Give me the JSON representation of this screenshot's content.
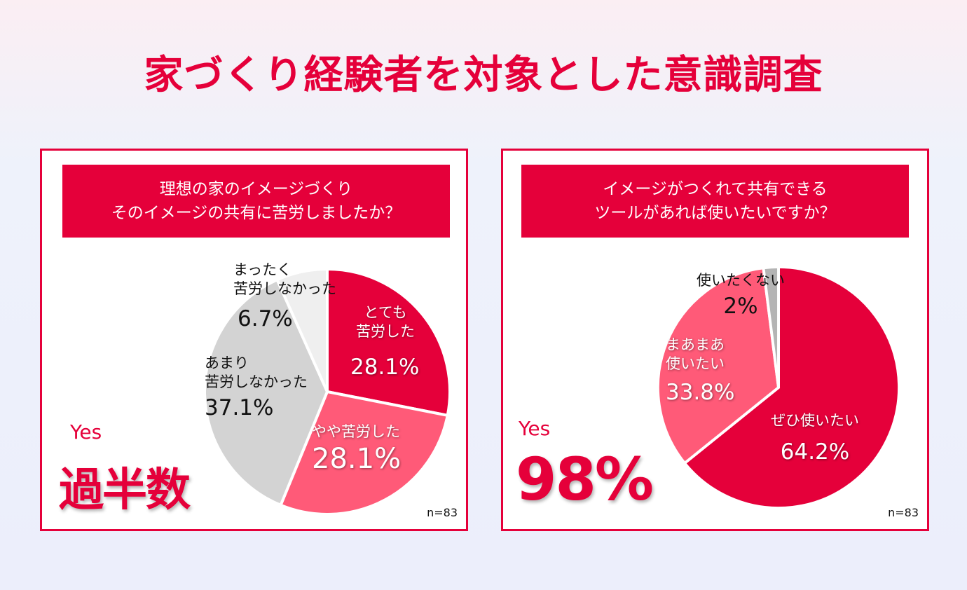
{
  "title": "家づくり経験者を対象とした意識調査",
  "chart_data": [
    {
      "type": "pie",
      "title_lines": [
        "理想の家のイメージづくり",
        "そのイメージの共有に苦労しましたか？"
      ],
      "slices": [
        {
          "label": "とても苦労した",
          "label_lines": [
            "とても",
            "苦労した"
          ],
          "value": 28.1,
          "pct_text": "28.1%",
          "color": "#e5003a"
        },
        {
          "label": "やや苦労した",
          "label_lines": [
            "やや苦労した"
          ],
          "value": 28.1,
          "pct_text": "28.1%",
          "color": "#ff5a78"
        },
        {
          "label": "あまり苦労しなかった",
          "label_lines": [
            "あまり",
            "苦労しなかった"
          ],
          "value": 37.1,
          "pct_text": "37.1%",
          "color": "#d3d3d3"
        },
        {
          "label": "まったく苦労しなかった",
          "label_lines": [
            "まったく",
            "苦労しなかった"
          ],
          "value": 6.7,
          "pct_text": "6.7%",
          "color": "#efefef"
        }
      ],
      "n": "n=83",
      "yes_label": "Yes",
      "highlight": "過半数"
    },
    {
      "type": "pie",
      "title_lines": [
        "イメージがつくれて共有できる",
        "ツールがあれば使いたいですか？"
      ],
      "slices": [
        {
          "label": "ぜひ使いたい",
          "label_lines": [
            "ぜひ使いたい"
          ],
          "value": 64.2,
          "pct_text": "64.2%",
          "color": "#e5003a"
        },
        {
          "label": "まあまあ使いたい",
          "label_lines": [
            "まあまあ",
            "使いたい"
          ],
          "value": 33.8,
          "pct_text": "33.8%",
          "color": "#ff5a78"
        },
        {
          "label": "使いたくない",
          "label_lines": [
            "使いたくない"
          ],
          "value": 2,
          "pct_text": "2%",
          "color": "#b4b4b4"
        }
      ],
      "n": "n=83",
      "yes_label": "Yes",
      "highlight": "98%"
    }
  ]
}
